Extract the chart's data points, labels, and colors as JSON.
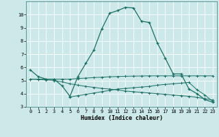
{
  "xlabel": "Humidex (Indice chaleur)",
  "bg_color": "#cce8e8",
  "line_color": "#1a6e64",
  "grid_color": "#ffffff",
  "xlim": [
    -0.5,
    23.5
  ],
  "ylim": [
    3,
    11
  ],
  "yticks": [
    3,
    4,
    5,
    6,
    7,
    8,
    9,
    10
  ],
  "xticks": [
    0,
    1,
    2,
    3,
    4,
    5,
    6,
    7,
    8,
    9,
    10,
    11,
    12,
    13,
    14,
    15,
    16,
    17,
    18,
    19,
    20,
    21,
    22,
    23
  ],
  "line1_x": [
    0,
    1,
    2,
    3,
    4,
    5,
    6,
    7,
    8,
    9,
    10,
    11,
    12,
    13,
    14,
    15,
    16,
    17,
    18,
    19,
    20,
    21,
    22,
    23
  ],
  "line1_y": [
    5.8,
    5.3,
    5.1,
    5.1,
    4.6,
    3.8,
    5.3,
    6.3,
    7.3,
    8.9,
    10.1,
    10.3,
    10.55,
    10.5,
    9.5,
    9.4,
    7.85,
    6.7,
    5.5,
    5.5,
    4.35,
    4.0,
    3.55,
    3.35
  ],
  "line2_x": [
    0,
    1,
    2,
    3,
    4,
    5,
    6,
    7,
    8,
    9,
    10,
    11,
    12,
    13,
    14,
    15,
    16,
    17,
    18,
    19,
    20,
    21,
    22,
    23
  ],
  "line2_y": [
    5.1,
    5.1,
    5.1,
    5.1,
    5.1,
    5.1,
    5.15,
    5.18,
    5.22,
    5.25,
    5.28,
    5.3,
    5.32,
    5.33,
    5.34,
    5.35,
    5.35,
    5.35,
    5.35,
    5.35,
    5.35,
    5.35,
    5.35,
    5.35
  ],
  "line3_x": [
    0,
    1,
    2,
    3,
    4,
    5,
    6,
    7,
    8,
    9,
    10,
    11,
    12,
    13,
    14,
    15,
    16,
    17,
    18,
    19,
    20,
    21,
    22,
    23
  ],
  "line3_y": [
    5.1,
    5.08,
    5.05,
    5.0,
    4.9,
    4.75,
    4.65,
    4.55,
    4.48,
    4.4,
    4.35,
    4.28,
    4.2,
    4.15,
    4.1,
    4.05,
    4.0,
    3.95,
    3.9,
    3.85,
    3.8,
    3.72,
    3.62,
    3.52
  ],
  "line4_x": [
    5,
    6,
    7,
    8,
    9,
    10,
    11,
    12,
    13,
    14,
    15,
    16,
    17,
    18,
    19,
    20,
    21,
    22,
    23
  ],
  "line4_y": [
    3.75,
    3.85,
    3.95,
    4.05,
    4.15,
    4.25,
    4.35,
    4.4,
    4.45,
    4.5,
    4.55,
    4.65,
    4.7,
    4.75,
    4.8,
    4.85,
    4.3,
    3.9,
    3.4
  ]
}
